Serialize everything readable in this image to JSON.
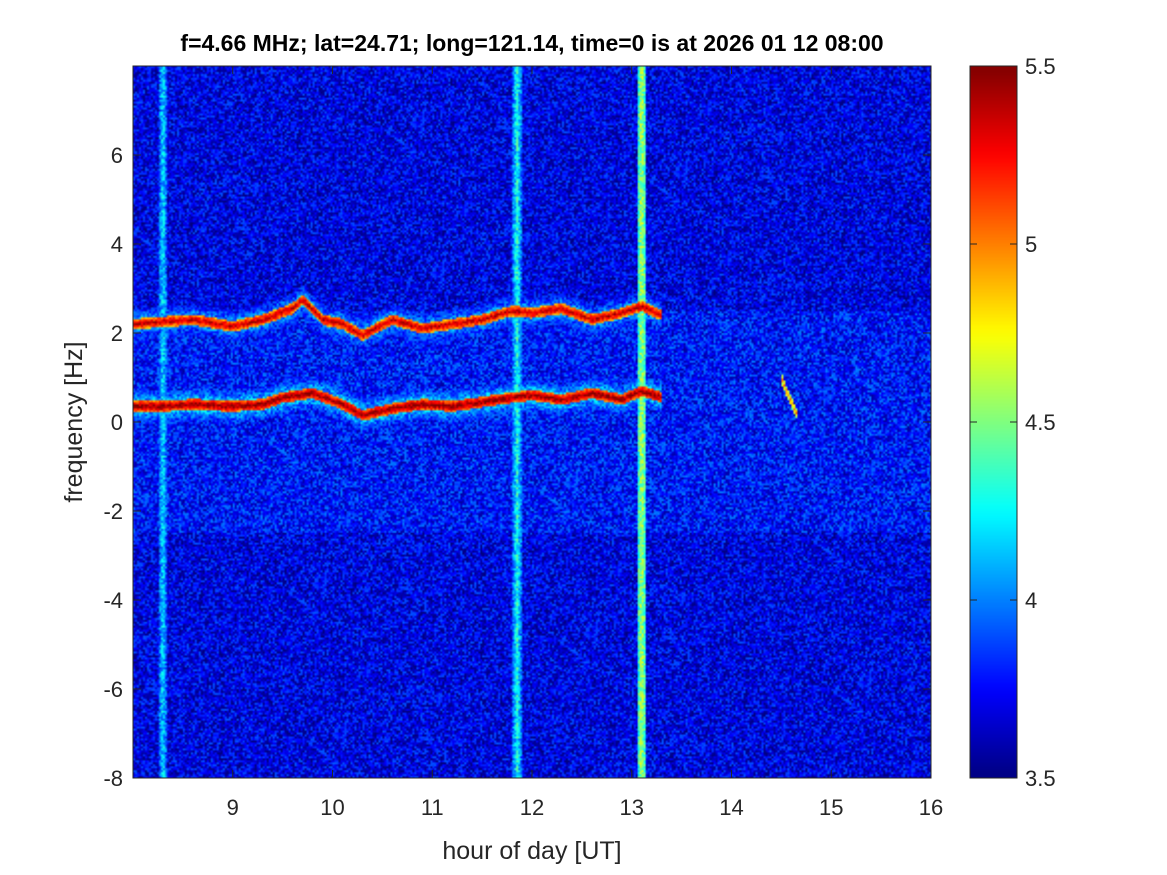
{
  "chart_data": {
    "type": "heatmap",
    "title": "f=4.66 MHz;  lat=24.71; long=121.14, time=0 is at 2026 01 12 08:00",
    "xlabel": "hour of day [UT]",
    "ylabel": "frequency [Hz]",
    "xlim": [
      8,
      16
    ],
    "ylim": [
      -8,
      8
    ],
    "x_ticks": [
      "9",
      "10",
      "11",
      "12",
      "13",
      "14",
      "15",
      "16"
    ],
    "y_ticks": [
      "-8",
      "-6",
      "-4",
      "-2",
      "0",
      "2",
      "4",
      "6"
    ],
    "colorbar": {
      "range": [
        3.5,
        5.5
      ],
      "ticks": [
        "3.5",
        "4",
        "4.5",
        "5",
        "5.5"
      ],
      "colormap": "jet"
    },
    "background_level": 3.7,
    "vertical_bands": [
      {
        "x": 8.3,
        "level": 4.2
      },
      {
        "x": 11.85,
        "level": 4.3
      },
      {
        "x": 13.1,
        "level": 4.6
      }
    ],
    "traces": [
      {
        "x": [
          8.0,
          8.3,
          8.6,
          9.0,
          9.3,
          9.6,
          9.7,
          9.9,
          10.1,
          10.3,
          10.6,
          10.9,
          11.2,
          11.5,
          11.8,
          12.0,
          12.3,
          12.6,
          12.9,
          13.1,
          13.3
        ],
        "y": [
          2.2,
          2.25,
          2.3,
          2.15,
          2.3,
          2.55,
          2.75,
          2.3,
          2.2,
          1.95,
          2.3,
          2.1,
          2.2,
          2.3,
          2.5,
          2.45,
          2.55,
          2.3,
          2.45,
          2.6,
          2.4
        ],
        "level": 5.4
      },
      {
        "x": [
          8.0,
          8.3,
          8.6,
          9.0,
          9.3,
          9.5,
          9.8,
          10.1,
          10.3,
          10.6,
          10.9,
          11.2,
          11.5,
          11.8,
          12.0,
          12.3,
          12.6,
          12.9,
          13.1,
          13.3
        ],
        "y": [
          0.35,
          0.35,
          0.4,
          0.35,
          0.4,
          0.55,
          0.65,
          0.4,
          0.15,
          0.3,
          0.4,
          0.35,
          0.45,
          0.55,
          0.6,
          0.5,
          0.65,
          0.5,
          0.7,
          0.55
        ],
        "level": 5.5
      },
      {
        "x": [
          14.5,
          14.55,
          14.6,
          14.65
        ],
        "y": [
          1.0,
          0.7,
          0.45,
          0.2
        ],
        "level": 5.0
      }
    ]
  }
}
